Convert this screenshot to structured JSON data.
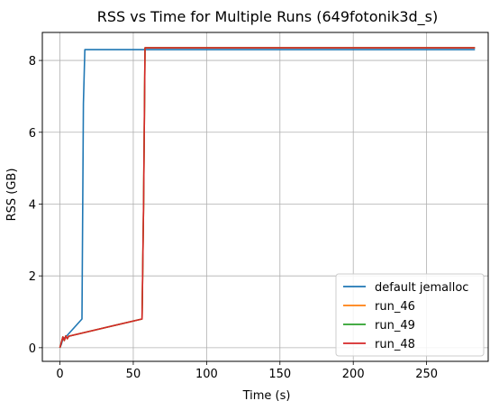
{
  "chart_data": {
    "type": "line",
    "title": "RSS vs Time for Multiple Runs (649fotonik3d_s)",
    "xlabel": "Time (s)",
    "ylabel": "RSS (GB)",
    "xlim": [
      -12,
      292
    ],
    "ylim": [
      -0.38,
      8.78
    ],
    "xticks": [
      0,
      50,
      100,
      150,
      200,
      250
    ],
    "yticks": [
      0,
      2,
      4,
      6,
      8
    ],
    "grid": true,
    "legend_position": "lower-right",
    "series": [
      {
        "name": "default jemalloc",
        "color": "#1f77b4",
        "points": [
          [
            0,
            0.0
          ],
          [
            1,
            0.1
          ],
          [
            2,
            0.25
          ],
          [
            4,
            0.3
          ],
          [
            15,
            0.8
          ],
          [
            16,
            6.8
          ],
          [
            17,
            8.3
          ],
          [
            55,
            8.3
          ],
          [
            283,
            8.3
          ]
        ]
      },
      {
        "name": "run_46",
        "color": "#ff7f0e",
        "points": [
          [
            0,
            0.0
          ],
          [
            1,
            0.15
          ],
          [
            2,
            0.3
          ],
          [
            3,
            0.2
          ],
          [
            4,
            0.33
          ],
          [
            5,
            0.25
          ],
          [
            6,
            0.32
          ],
          [
            56,
            0.8
          ],
          [
            57,
            4.0
          ],
          [
            58,
            8.35
          ],
          [
            283,
            8.35
          ]
        ]
      },
      {
        "name": "run_49",
        "color": "#2ca02c",
        "points": [
          [
            0,
            0.0
          ],
          [
            1,
            0.15
          ],
          [
            2,
            0.3
          ],
          [
            3,
            0.2
          ],
          [
            4,
            0.33
          ],
          [
            5,
            0.25
          ],
          [
            6,
            0.32
          ],
          [
            56,
            0.8
          ],
          [
            57,
            4.0
          ],
          [
            58,
            8.35
          ],
          [
            283,
            8.35
          ]
        ]
      },
      {
        "name": "run_48",
        "color": "#d62728",
        "points": [
          [
            0,
            0.0
          ],
          [
            1,
            0.15
          ],
          [
            2,
            0.3
          ],
          [
            3,
            0.2
          ],
          [
            4,
            0.33
          ],
          [
            5,
            0.25
          ],
          [
            6,
            0.32
          ],
          [
            56,
            0.8
          ],
          [
            57,
            4.0
          ],
          [
            58,
            8.35
          ],
          [
            283,
            8.35
          ]
        ]
      }
    ]
  }
}
